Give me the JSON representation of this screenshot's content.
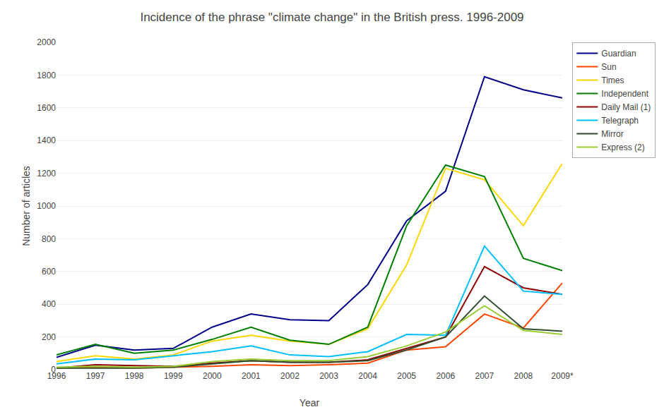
{
  "chart_data": {
    "type": "line",
    "title": "Incidence of the phrase \"climate change\" in the British press. 1996-2009",
    "xlabel": "Year",
    "ylabel": "Number of articles",
    "categories": [
      "1996",
      "1997",
      "1998",
      "1999",
      "2000",
      "2001",
      "2002",
      "2003",
      "2004",
      "2005",
      "2006",
      "2007",
      "2008",
      "2009*"
    ],
    "series": [
      {
        "name": "Guardian",
        "color": "#00008B",
        "values": [
          75,
          150,
          120,
          130,
          260,
          340,
          305,
          300,
          520,
          910,
          1090,
          1790,
          1710,
          1660
        ]
      },
      {
        "name": "Sun",
        "color": "#FF4500",
        "values": [
          10,
          15,
          10,
          15,
          20,
          30,
          25,
          30,
          40,
          120,
          140,
          340,
          255,
          530
        ]
      },
      {
        "name": "Times",
        "color": "#FFD700",
        "values": [
          50,
          85,
          65,
          90,
          175,
          210,
          175,
          155,
          250,
          640,
          1230,
          1160,
          880,
          1260
        ]
      },
      {
        "name": "Independent",
        "color": "#008000",
        "values": [
          90,
          155,
          100,
          120,
          185,
          260,
          180,
          155,
          260,
          880,
          1250,
          1180,
          680,
          605
        ]
      },
      {
        "name": "Daily Mail (1)",
        "color": "#8B0000",
        "values": [
          10,
          30,
          25,
          20,
          40,
          55,
          45,
          45,
          60,
          130,
          200,
          630,
          500,
          460
        ]
      },
      {
        "name": "Telegraph",
        "color": "#00BFFF",
        "values": [
          35,
          65,
          60,
          85,
          110,
          145,
          90,
          80,
          110,
          215,
          210,
          755,
          480,
          460
        ]
      },
      {
        "name": "Mirror",
        "color": "#2F4F2F",
        "values": [
          10,
          10,
          10,
          15,
          35,
          55,
          45,
          45,
          55,
          120,
          200,
          450,
          250,
          235
        ]
      },
      {
        "name": "Express (2)",
        "color": "#9ACD32",
        "values": [
          15,
          20,
          15,
          20,
          50,
          65,
          55,
          55,
          80,
          145,
          230,
          390,
          240,
          215
        ]
      }
    ],
    "ylim": [
      0,
      2000
    ],
    "yticks": [
      0,
      200,
      400,
      600,
      800,
      1000,
      1200,
      1400,
      1600,
      1800,
      2000
    ],
    "grid": true,
    "legend": "right"
  }
}
